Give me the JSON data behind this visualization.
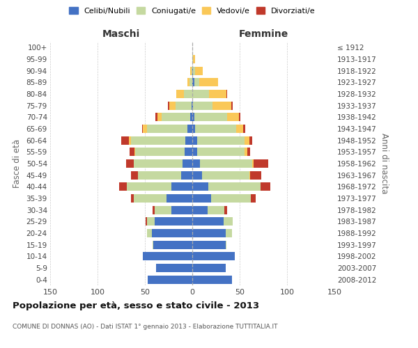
{
  "age_groups": [
    "100+",
    "95-99",
    "90-94",
    "85-89",
    "80-84",
    "75-79",
    "70-74",
    "65-69",
    "60-64",
    "55-59",
    "50-54",
    "45-49",
    "40-44",
    "35-39",
    "30-34",
    "25-29",
    "20-24",
    "15-19",
    "10-14",
    "5-9",
    "0-4"
  ],
  "birth_years": [
    "≤ 1912",
    "1913-1917",
    "1918-1922",
    "1923-1927",
    "1928-1932",
    "1933-1937",
    "1938-1942",
    "1943-1947",
    "1948-1952",
    "1953-1957",
    "1958-1962",
    "1963-1967",
    "1968-1972",
    "1973-1977",
    "1978-1982",
    "1983-1987",
    "1988-1992",
    "1993-1997",
    "1998-2002",
    "2003-2007",
    "2008-2012"
  ],
  "maschi": {
    "celibe": [
      0,
      0,
      0,
      0,
      0,
      1,
      2,
      5,
      7,
      8,
      10,
      12,
      22,
      27,
      22,
      40,
      43,
      41,
      52,
      38,
      47
    ],
    "coniugato": [
      0,
      0,
      1,
      3,
      9,
      17,
      30,
      43,
      58,
      52,
      52,
      45,
      47,
      35,
      18,
      8,
      5,
      1,
      0,
      0,
      0
    ],
    "vedovo": [
      0,
      0,
      1,
      2,
      8,
      6,
      5,
      4,
      2,
      1,
      0,
      0,
      0,
      0,
      0,
      0,
      0,
      0,
      0,
      0,
      0
    ],
    "divorziato": [
      0,
      0,
      0,
      0,
      0,
      2,
      2,
      1,
      8,
      5,
      8,
      8,
      8,
      3,
      2,
      1,
      0,
      0,
      0,
      0,
      0
    ]
  },
  "femmine": {
    "nubile": [
      0,
      0,
      1,
      2,
      0,
      1,
      2,
      3,
      5,
      5,
      8,
      10,
      17,
      20,
      16,
      33,
      35,
      35,
      45,
      35,
      42
    ],
    "coniugata": [
      0,
      1,
      2,
      5,
      18,
      20,
      35,
      43,
      50,
      50,
      55,
      50,
      55,
      42,
      18,
      10,
      7,
      1,
      0,
      0,
      0
    ],
    "vedova": [
      0,
      2,
      8,
      20,
      18,
      20,
      12,
      8,
      5,
      3,
      2,
      1,
      0,
      0,
      0,
      0,
      0,
      0,
      0,
      0,
      0
    ],
    "divorziata": [
      0,
      0,
      0,
      0,
      1,
      2,
      2,
      2,
      3,
      3,
      15,
      12,
      10,
      5,
      3,
      0,
      0,
      0,
      0,
      0,
      0
    ]
  },
  "colors": {
    "celibe": "#4472C4",
    "coniugato": "#C5D9A0",
    "vedovo": "#FAC858",
    "divorziato": "#C0392B"
  },
  "xlim": 150,
  "title": "Popolazione per età, sesso e stato civile - 2013",
  "subtitle": "COMUNE DI DONNAS (AO) - Dati ISTAT 1° gennaio 2013 - Elaborazione TUTTITALIA.IT",
  "ylabel_left": "Fasce di età",
  "ylabel_right": "Anni di nascita",
  "xlabel_maschi": "Maschi",
  "xlabel_femmine": "Femmine",
  "bg_color": "#ffffff",
  "grid_color": "#cccccc",
  "legend": [
    "Celibi/Nubili",
    "Coniugati/e",
    "Vedovi/e",
    "Divorziati/e"
  ]
}
